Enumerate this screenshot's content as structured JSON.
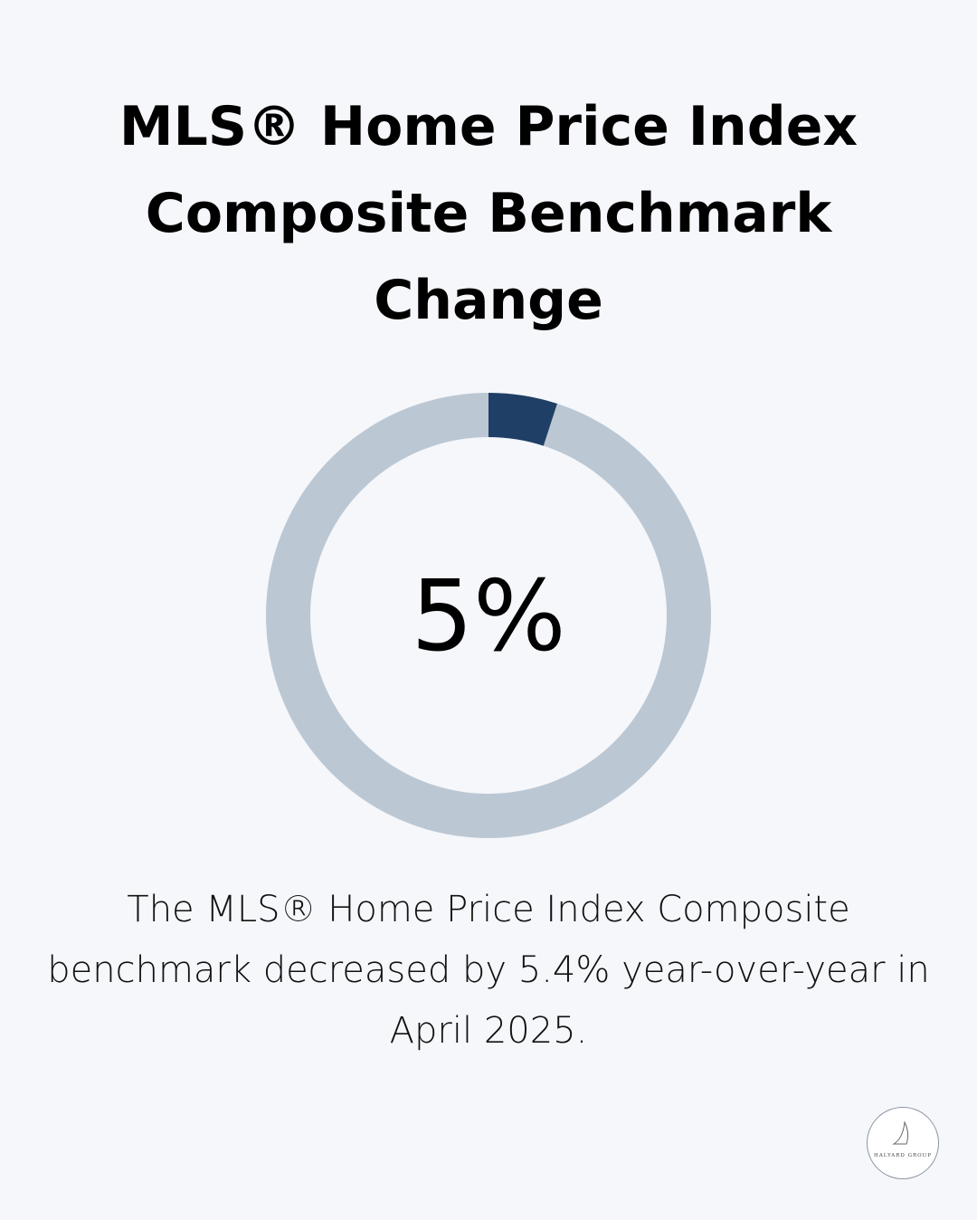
{
  "chart_data": {
    "type": "donut",
    "title": "MLS® Home Price Index Composite Benchmark Change",
    "values": [
      5,
      95
    ],
    "value_labels": [
      "5%",
      null
    ],
    "colors": [
      "#1f3f66",
      "#bcc7d4"
    ],
    "caption": "The MLS® Home Price Index Composite benchmark decreased by 5.4% year-over-year in April 2025."
  },
  "logo": "HALYARD GROUP"
}
